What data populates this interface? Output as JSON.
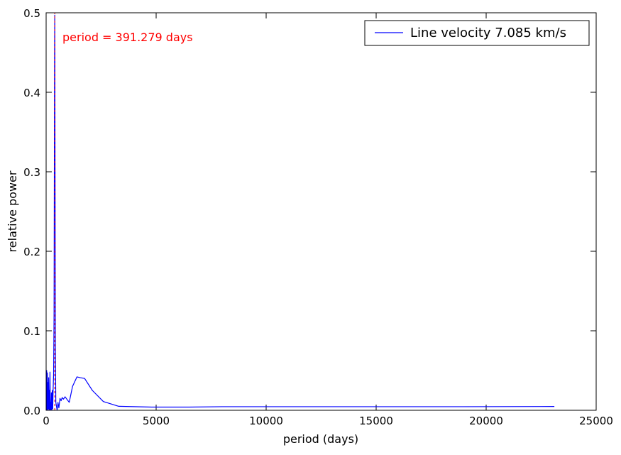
{
  "chart_data": {
    "type": "line",
    "title": "",
    "xlabel": "period (days)",
    "ylabel": "relative power",
    "xlim": [
      0,
      25000
    ],
    "ylim": [
      0,
      0.5
    ],
    "x_ticks": [
      0,
      5000,
      10000,
      15000,
      20000,
      25000
    ],
    "x_tick_labels": [
      "0",
      "5000",
      "10000",
      "15000",
      "20000",
      "25000"
    ],
    "y_ticks": [
      0.0,
      0.1,
      0.2,
      0.3,
      0.4,
      0.5
    ],
    "y_tick_labels": [
      "0.0",
      "0.1",
      "0.2",
      "0.3",
      "0.4",
      "0.5"
    ],
    "grid": false,
    "legend": {
      "placement": "top-right",
      "entries": [
        {
          "label": "Line velocity 7.085 km/s",
          "color": "#0000ff"
        }
      ]
    },
    "annotations": [
      {
        "text": "period = 391.279 days",
        "color": "#ff0000",
        "x": 750,
        "y": 0.467
      }
    ],
    "vertical_marker": {
      "x": 391.279,
      "color": "#ff0000",
      "style": "dashed"
    },
    "series": [
      {
        "name": "Line velocity 7.085 km/s",
        "color": "#0000ff",
        "x": [
          10,
          25,
          40,
          55,
          70,
          85,
          100,
          115,
          130,
          145,
          160,
          175,
          190,
          205,
          220,
          240,
          260,
          280,
          300,
          320,
          340,
          360,
          375,
          385,
          391.279,
          397,
          405,
          420,
          440,
          470,
          500,
          540,
          580,
          630,
          680,
          730,
          790,
          860,
          940,
          1050,
          1200,
          1400,
          1550,
          1750,
          2100,
          2600,
          3300,
          4800,
          6500,
          8000,
          11000,
          15000,
          19000,
          23100
        ],
        "y": [
          0.0,
          0.05,
          0.0,
          0.047,
          0.0,
          0.035,
          0.002,
          0.041,
          0.0,
          0.025,
          0.0,
          0.048,
          0.0,
          0.01,
          0.0,
          0.022,
          0.0,
          0.025,
          0.002,
          0.028,
          0.045,
          0.12,
          0.33,
          0.46,
          0.497,
          0.45,
          0.3,
          0.08,
          0.01,
          0.005,
          0.0,
          0.01,
          0.003,
          0.015,
          0.012,
          0.016,
          0.014,
          0.017,
          0.014,
          0.01,
          0.03,
          0.042,
          0.041,
          0.04,
          0.025,
          0.011,
          0.005,
          0.004,
          0.004,
          0.0045,
          0.0045,
          0.0045,
          0.0045,
          0.0048
        ]
      }
    ]
  }
}
